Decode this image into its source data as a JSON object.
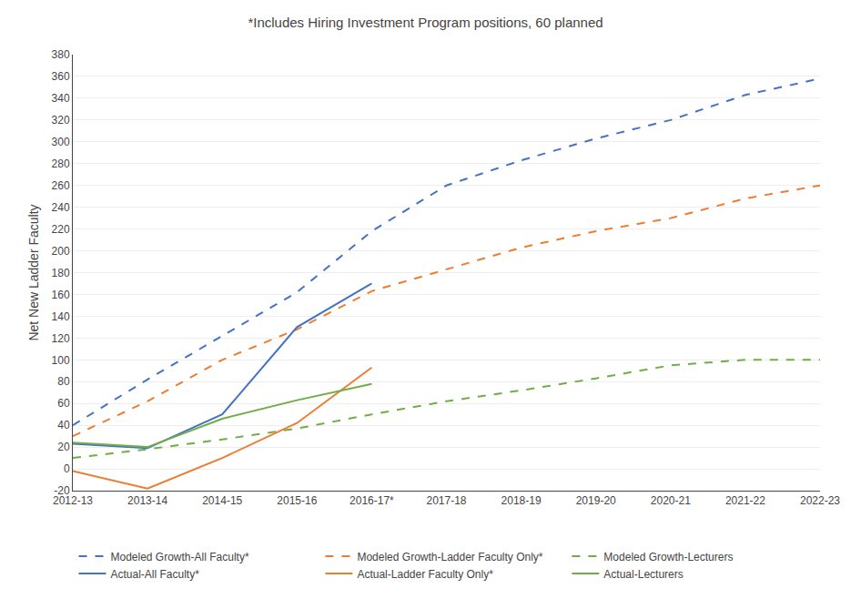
{
  "chart_data": {
    "type": "line",
    "title": "*Includes Hiring Investment Program positions, 60 planned",
    "y_label": "Net New Ladder Faculty",
    "categories": [
      "2012-13",
      "2013-14",
      "2014-15",
      "2015-16",
      "2016-17*",
      "2017-18",
      "2018-19",
      "2019-20",
      "2020-21",
      "2021-22",
      "2022-23"
    ],
    "ylim": [
      -20,
      380
    ],
    "yticks": [
      -20,
      0,
      20,
      40,
      60,
      80,
      100,
      120,
      140,
      160,
      180,
      200,
      220,
      240,
      260,
      280,
      300,
      320,
      340,
      360,
      380
    ],
    "grid": true,
    "legend": "bottom",
    "series": [
      {
        "name": "Modeled Growth-All Faculty*",
        "color": "#4472C4",
        "line_style": "dashed",
        "values": [
          40,
          82,
          122,
          162,
          218,
          260,
          283,
          303,
          320,
          343,
          358
        ]
      },
      {
        "name": "Modeled Growth-Ladder Faculty Only*",
        "color": "#ED7D31",
        "line_style": "dashed",
        "values": [
          30,
          62,
          100,
          128,
          163,
          183,
          203,
          218,
          230,
          248,
          260
        ]
      },
      {
        "name": "Modeled Growth-Lecturers",
        "color": "#70AD47",
        "line_style": "dashed",
        "values": [
          10,
          18,
          27,
          37,
          50,
          62,
          72,
          83,
          95,
          100,
          100
        ]
      },
      {
        "name": "Actual-All Faculty*",
        "color": "#4472C4",
        "line_style": "solid",
        "values": [
          23,
          19,
          50,
          130,
          170,
          null,
          null,
          null,
          null,
          null,
          null
        ]
      },
      {
        "name": "Actual-Ladder Faculty Only*",
        "color": "#ED7D31",
        "line_style": "solid",
        "values": [
          -2,
          -18,
          10,
          42,
          93,
          null,
          null,
          null,
          null,
          null,
          null
        ]
      },
      {
        "name": "Actual-Lecturers",
        "color": "#70AD47",
        "line_style": "solid",
        "values": [
          24,
          20,
          46,
          63,
          78,
          null,
          null,
          null,
          null,
          null,
          null
        ]
      }
    ]
  }
}
